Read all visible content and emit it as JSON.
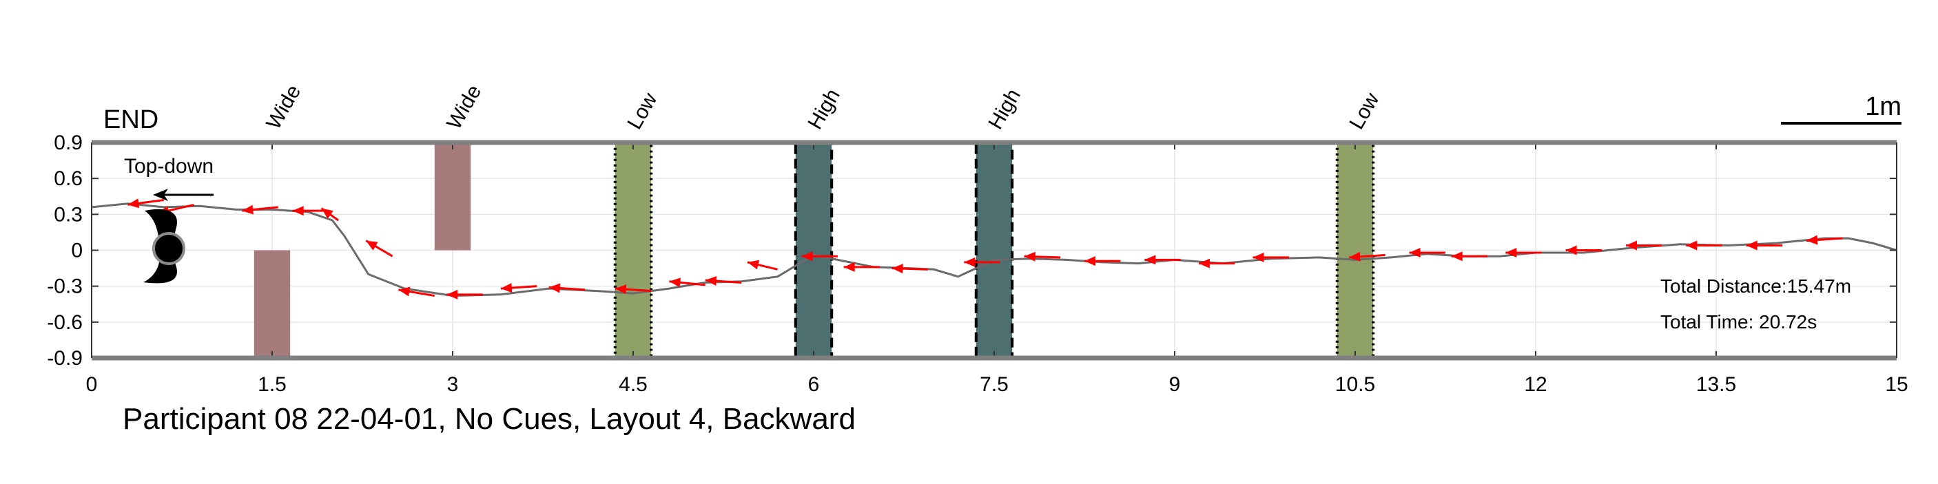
{
  "chart_data": {
    "type": "line",
    "title": "Participant 08 22-04-01, No Cues, Layout 4, Backward",
    "xlim": [
      0,
      15
    ],
    "ylim": [
      -0.9,
      0.9
    ],
    "x_ticks": [
      "0",
      "1.5",
      "3",
      "4.5",
      "6",
      "7.5",
      "9",
      "10.5",
      "12",
      "13.5",
      "15"
    ],
    "y_ticks": [
      "0.9",
      "0.6",
      "0.3",
      "0",
      "-0.3",
      "-0.6",
      "-0.9"
    ],
    "grid": true,
    "end_label": "END",
    "scale_label": "1m",
    "orientation_label": "Top-down",
    "stats": {
      "distance": "Total Distance:15.47m",
      "time": "Total Time: 20.72s"
    },
    "obstacles": [
      {
        "label": "Wide",
        "x_center": 1.5,
        "x_start": 1.35,
        "x_end": 1.65,
        "y_start": -0.9,
        "y_end": 0.0,
        "color": "#a67b7b",
        "border": "none"
      },
      {
        "label": "Wide",
        "x_center": 3.0,
        "x_start": 2.85,
        "x_end": 3.15,
        "y_start": 0.0,
        "y_end": 0.9,
        "color": "#a67b7b",
        "border": "none"
      },
      {
        "label": "Low",
        "x_center": 4.5,
        "x_start": 4.35,
        "x_end": 4.65,
        "y_start": -0.9,
        "y_end": 0.9,
        "color": "#8fa167",
        "border": "dotted"
      },
      {
        "label": "High",
        "x_center": 6.0,
        "x_start": 5.85,
        "x_end": 6.15,
        "y_start": -0.9,
        "y_end": 0.9,
        "color": "#4e6f70",
        "border": "dashed"
      },
      {
        "label": "High",
        "x_center": 7.5,
        "x_start": 7.35,
        "x_end": 7.65,
        "y_start": -0.9,
        "y_end": 0.9,
        "color": "#4e6f70",
        "border": "dashed"
      },
      {
        "label": "Low",
        "x_center": 10.5,
        "x_start": 10.35,
        "x_end": 10.65,
        "y_start": -0.9,
        "y_end": 0.9,
        "color": "#8fa167",
        "border": "dotted"
      }
    ],
    "path": {
      "x": [
        0.0,
        0.3,
        0.6,
        0.9,
        1.2,
        1.5,
        1.8,
        2.0,
        2.1,
        2.3,
        2.6,
        3.0,
        3.4,
        3.8,
        4.2,
        4.5,
        4.8,
        5.1,
        5.4,
        5.7,
        5.9,
        6.0,
        6.2,
        6.5,
        6.8,
        7.0,
        7.2,
        7.5,
        7.8,
        8.1,
        8.4,
        8.7,
        9.0,
        9.4,
        9.8,
        10.2,
        10.5,
        10.8,
        11.1,
        11.4,
        11.7,
        12.0,
        12.4,
        12.8,
        13.2,
        13.6,
        14.0,
        14.4,
        14.6,
        14.8,
        15.0
      ],
      "y": [
        0.36,
        0.39,
        0.36,
        0.37,
        0.34,
        0.34,
        0.32,
        0.25,
        0.12,
        -0.2,
        -0.32,
        -0.38,
        -0.37,
        -0.32,
        -0.34,
        -0.36,
        -0.32,
        -0.27,
        -0.26,
        -0.22,
        -0.1,
        -0.04,
        -0.08,
        -0.14,
        -0.15,
        -0.16,
        -0.22,
        -0.08,
        -0.07,
        -0.08,
        -0.1,
        -0.11,
        -0.08,
        -0.11,
        -0.07,
        -0.06,
        -0.08,
        -0.06,
        -0.03,
        -0.05,
        -0.05,
        -0.02,
        -0.02,
        0.02,
        0.05,
        0.04,
        0.06,
        0.1,
        0.1,
        0.06,
        0.0
      ]
    },
    "heading_arrows": [
      {
        "x": 0.6,
        "y": 0.42,
        "dx": -0.3,
        "dy": -0.04
      },
      {
        "x": 0.85,
        "y": 0.38,
        "dx": -0.3,
        "dy": -0.07
      },
      {
        "x": 1.55,
        "y": 0.36,
        "dx": -0.3,
        "dy": -0.03
      },
      {
        "x": 1.95,
        "y": 0.33,
        "dx": -0.28,
        "dy": 0.0
      },
      {
        "x": 2.05,
        "y": 0.25,
        "dx": -0.14,
        "dy": 0.1
      },
      {
        "x": 2.5,
        "y": -0.05,
        "dx": -0.22,
        "dy": 0.13
      },
      {
        "x": 2.85,
        "y": -0.38,
        "dx": -0.3,
        "dy": 0.05
      },
      {
        "x": 3.25,
        "y": -0.37,
        "dx": -0.3,
        "dy": 0.0
      },
      {
        "x": 3.7,
        "y": -0.3,
        "dx": -0.3,
        "dy": -0.02
      },
      {
        "x": 4.1,
        "y": -0.33,
        "dx": -0.3,
        "dy": 0.02
      },
      {
        "x": 4.65,
        "y": -0.34,
        "dx": -0.3,
        "dy": 0.02
      },
      {
        "x": 5.1,
        "y": -0.29,
        "dx": -0.3,
        "dy": 0.03
      },
      {
        "x": 5.4,
        "y": -0.27,
        "dx": -0.3,
        "dy": 0.02
      },
      {
        "x": 5.7,
        "y": -0.16,
        "dx": -0.25,
        "dy": 0.06
      },
      {
        "x": 6.2,
        "y": -0.05,
        "dx": -0.3,
        "dy": 0.0
      },
      {
        "x": 6.55,
        "y": -0.14,
        "dx": -0.3,
        "dy": 0.0
      },
      {
        "x": 6.95,
        "y": -0.16,
        "dx": -0.3,
        "dy": 0.01
      },
      {
        "x": 7.55,
        "y": -0.1,
        "dx": -0.3,
        "dy": 0.0
      },
      {
        "x": 8.05,
        "y": -0.06,
        "dx": -0.3,
        "dy": 0.01
      },
      {
        "x": 8.55,
        "y": -0.09,
        "dx": -0.3,
        "dy": 0.0
      },
      {
        "x": 9.05,
        "y": -0.08,
        "dx": -0.3,
        "dy": 0.0
      },
      {
        "x": 9.5,
        "y": -0.11,
        "dx": -0.3,
        "dy": 0.0
      },
      {
        "x": 9.95,
        "y": -0.06,
        "dx": -0.3,
        "dy": 0.0
      },
      {
        "x": 10.75,
        "y": -0.04,
        "dx": -0.3,
        "dy": -0.02
      },
      {
        "x": 11.25,
        "y": -0.02,
        "dx": -0.3,
        "dy": 0.0
      },
      {
        "x": 11.6,
        "y": -0.05,
        "dx": -0.3,
        "dy": 0.0
      },
      {
        "x": 12.05,
        "y": -0.02,
        "dx": -0.3,
        "dy": 0.0
      },
      {
        "x": 12.55,
        "y": 0.0,
        "dx": -0.3,
        "dy": 0.0
      },
      {
        "x": 13.05,
        "y": 0.04,
        "dx": -0.3,
        "dy": 0.0
      },
      {
        "x": 13.55,
        "y": 0.04,
        "dx": -0.3,
        "dy": 0.0
      },
      {
        "x": 14.05,
        "y": 0.04,
        "dx": -0.3,
        "dy": 0.0
      },
      {
        "x": 14.55,
        "y": 0.1,
        "dx": -0.3,
        "dy": -0.02
      }
    ],
    "colors": {
      "path": "#6b6b6b",
      "arrows": "#ff0000",
      "frame": "#808080"
    }
  }
}
